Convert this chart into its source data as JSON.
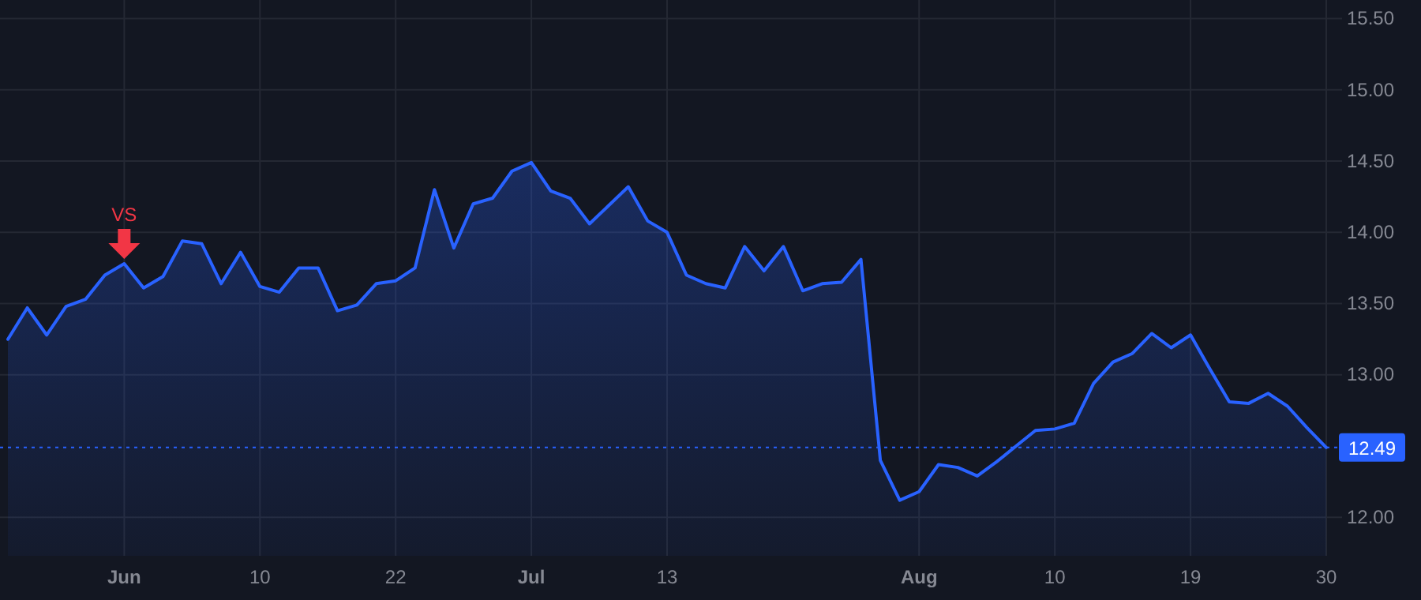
{
  "chart_data": {
    "type": "area",
    "categories": [
      null,
      null,
      null,
      null,
      null,
      null,
      "Jun",
      null,
      null,
      null,
      null,
      null,
      null,
      "10",
      null,
      null,
      null,
      null,
      null,
      null,
      "22",
      null,
      null,
      null,
      null,
      null,
      null,
      "Jul",
      null,
      null,
      null,
      null,
      null,
      null,
      "13",
      null,
      null,
      null,
      null,
      null,
      null,
      null,
      null,
      null,
      null,
      null,
      null,
      "Aug",
      null,
      null,
      null,
      null,
      null,
      null,
      "10",
      null,
      null,
      null,
      null,
      null,
      null,
      "19",
      null,
      null,
      null,
      null,
      null,
      null,
      "30"
    ],
    "series": [
      {
        "color": "#2962ff",
        "values": [
          13.25,
          13.47,
          13.28,
          13.48,
          13.53,
          13.7,
          13.78,
          13.61,
          13.69,
          13.94,
          13.92,
          13.64,
          13.86,
          13.62,
          13.58,
          13.75,
          13.75,
          13.45,
          13.49,
          13.64,
          13.66,
          13.75,
          14.3,
          13.89,
          14.2,
          14.24,
          14.43,
          14.49,
          14.29,
          14.24,
          14.06,
          14.19,
          14.32,
          14.08,
          14.0,
          13.7,
          13.64,
          13.61,
          13.9,
          13.73,
          13.9,
          13.59,
          13.64,
          13.65,
          13.81,
          12.4,
          12.12,
          12.18,
          12.37,
          12.35,
          12.29,
          12.39,
          12.5,
          12.61,
          12.62,
          12.66,
          12.94,
          13.09,
          13.15,
          13.29,
          13.19,
          13.28,
          13.04,
          12.81,
          12.8,
          12.87,
          12.78,
          12.63,
          12.49
        ]
      }
    ],
    "ylim": [
      11.73,
      15.52
    ],
    "yticks": [
      {
        "value": 12,
        "label": "12.00"
      },
      {
        "value": 13,
        "label": "13.00"
      },
      {
        "value": 13.5,
        "label": "13.50"
      },
      {
        "value": 14,
        "label": "14.00"
      },
      {
        "value": 14.5,
        "label": "14.50"
      },
      {
        "value": 15,
        "label": "15.00"
      },
      {
        "value": 15.5,
        "label": "15.50"
      }
    ],
    "grid": true,
    "ref_lines": [
      {
        "axis": "y",
        "value": 12.49,
        "label": "12.49",
        "color": "#2962ff",
        "line_style": "dotted"
      }
    ],
    "annotations": [
      {
        "text": "VS",
        "x": "Jun",
        "y": 13.78
      }
    ]
  }
}
